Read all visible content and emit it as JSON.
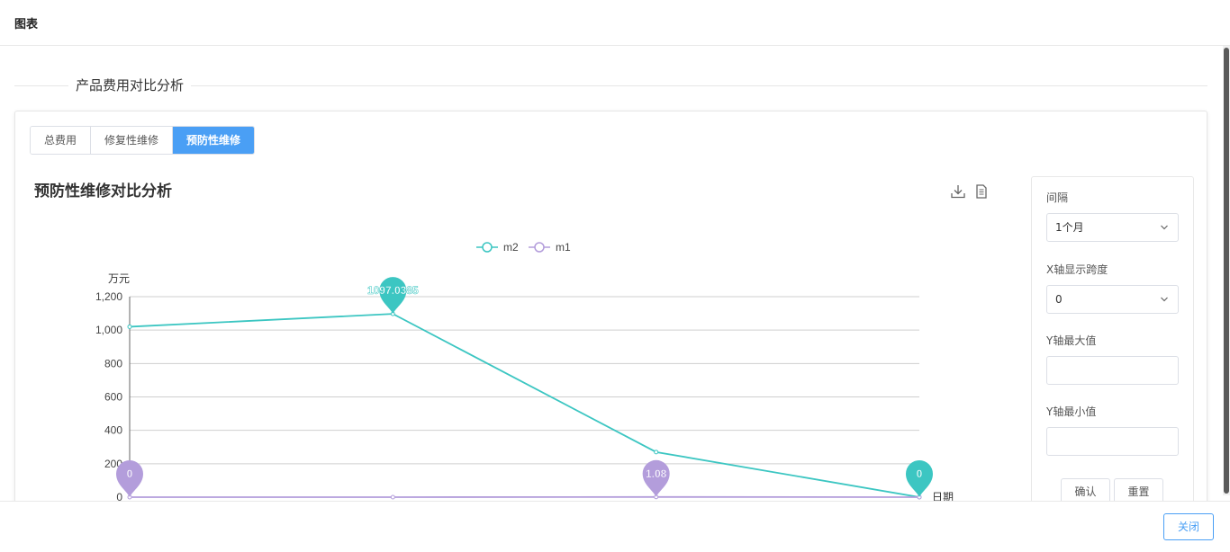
{
  "header": {
    "title": "图表"
  },
  "section": {
    "title": "产品费用对比分析"
  },
  "tabs": [
    {
      "label": "总费用",
      "active": false
    },
    {
      "label": "修复性维修",
      "active": false
    },
    {
      "label": "预防性维修",
      "active": true
    }
  ],
  "chart": {
    "title": "预防性维修对比分析",
    "toolbar": {
      "download_icon": "download-icon",
      "data_view_icon": "document-icon"
    }
  },
  "chart_data": {
    "type": "line",
    "title": "预防性维修对比分析",
    "ylabel": "万元",
    "xlabel": "日期",
    "ylim": [
      0,
      1200
    ],
    "yticks": [
      0,
      200,
      400,
      600,
      800,
      1000,
      1200
    ],
    "ytick_labels": [
      "0",
      "200",
      "400",
      "600",
      "800",
      "1,000",
      "1,200"
    ],
    "x_count": 4,
    "series": [
      {
        "name": "m2",
        "color": "#3cc6c2",
        "values": [
          1020,
          1097.0385,
          270,
          0
        ],
        "markers": [
          {
            "index": 1,
            "label": "1097.0385"
          },
          {
            "index": 3,
            "label": "0"
          }
        ]
      },
      {
        "name": "m1",
        "color": "#b39ddb",
        "values": [
          0,
          0,
          1.08,
          0
        ],
        "markers": [
          {
            "index": 0,
            "label": "0"
          },
          {
            "index": 2,
            "label": "1.08"
          }
        ]
      }
    ],
    "legend_position": "top-center",
    "grid": true
  },
  "sidepanel": {
    "interval_label": "间隔",
    "interval_value": "1个月",
    "x_span_label": "X轴显示跨度",
    "x_span_value": "0",
    "y_max_label": "Y轴最大值",
    "y_max_value": "",
    "y_min_label": "Y轴最小值",
    "y_min_value": "",
    "confirm_label": "确认",
    "reset_label": "重置"
  },
  "footer": {
    "close_label": "关闭"
  }
}
